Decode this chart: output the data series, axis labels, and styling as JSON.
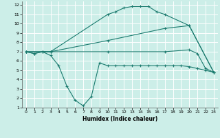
{
  "xlabel": "Humidex (Indice chaleur)",
  "bg_color": "#cceee8",
  "grid_color": "#ffffff",
  "line_color": "#1a7a6e",
  "xlim": [
    -0.5,
    23.5
  ],
  "ylim": [
    1,
    12.4
  ],
  "xticks": [
    0,
    1,
    2,
    3,
    4,
    5,
    6,
    7,
    8,
    9,
    10,
    11,
    12,
    13,
    14,
    15,
    16,
    17,
    18,
    19,
    20,
    21,
    22,
    23
  ],
  "yticks": [
    1,
    2,
    3,
    4,
    5,
    6,
    7,
    8,
    9,
    10,
    11,
    12
  ],
  "curve1_x": [
    0,
    1,
    2,
    3,
    10,
    11,
    12,
    13,
    14,
    15,
    16,
    17,
    20,
    23
  ],
  "curve1_y": [
    7,
    6.8,
    7.0,
    7.0,
    11.0,
    11.3,
    11.7,
    11.85,
    11.85,
    11.85,
    11.3,
    11.0,
    9.8,
    4.8
  ],
  "curve2_x": [
    0,
    3,
    10,
    17,
    20,
    23
  ],
  "curve2_y": [
    7,
    7.0,
    8.2,
    9.5,
    9.8,
    4.8
  ],
  "curve3_x": [
    0,
    3,
    10,
    17,
    20,
    21,
    22,
    23
  ],
  "curve3_y": [
    7,
    7.0,
    7.0,
    7.0,
    7.2,
    6.8,
    5.2,
    4.8
  ],
  "curve4_x": [
    0,
    1,
    2,
    3,
    4,
    5,
    6,
    7,
    8,
    9,
    10,
    11,
    12,
    13,
    14,
    15,
    16,
    17,
    18,
    19,
    20,
    21,
    22,
    23
  ],
  "curve4_y": [
    7,
    6.8,
    7.0,
    6.6,
    5.5,
    3.3,
    1.8,
    1.2,
    2.2,
    5.8,
    5.5,
    5.5,
    5.5,
    5.5,
    5.5,
    5.5,
    5.5,
    5.5,
    5.5,
    5.5,
    5.4,
    5.2,
    5.0,
    4.8
  ]
}
